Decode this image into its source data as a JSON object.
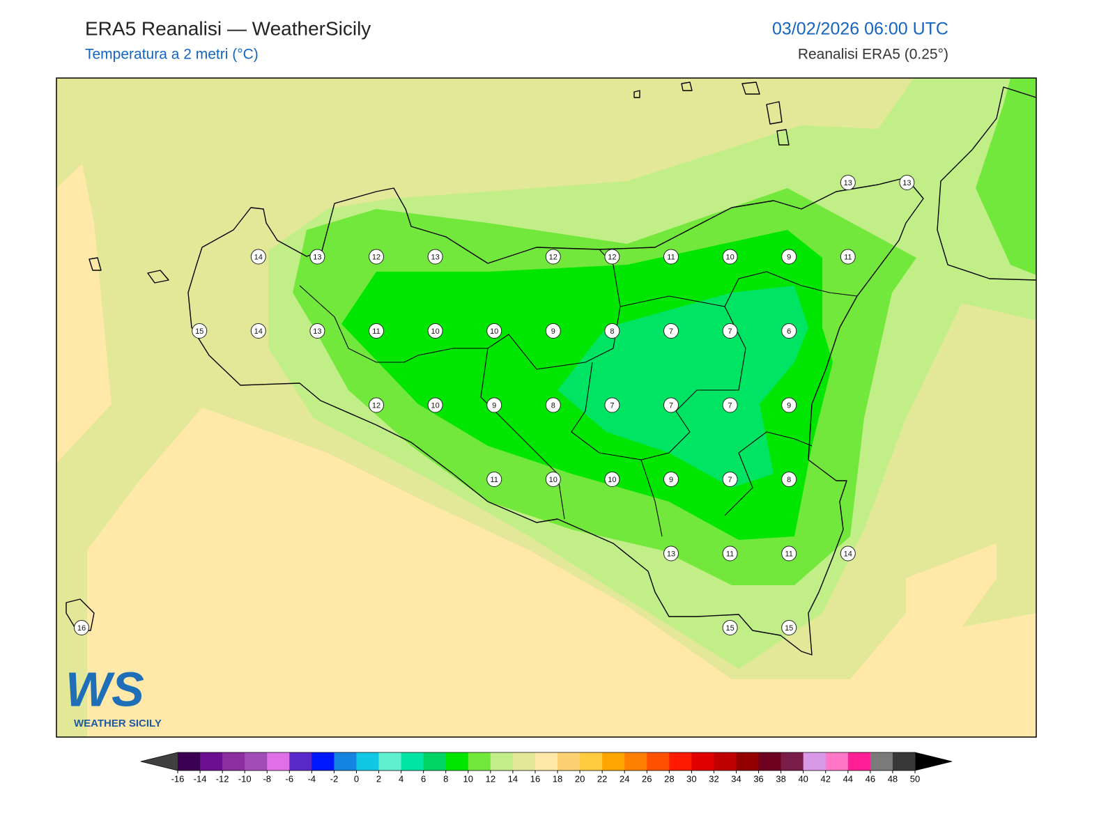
{
  "header": {
    "title": "ERA5 Reanalisi — WeatherSicily",
    "subtitle": "Temperatura a 2 metri (°C)",
    "datetime": "03/02/2026 06:00 UTC",
    "source": "Reanalisi ERA5 (0.25°)"
  },
  "stations": {
    "rows": [
      [
        null,
        null,
        null,
        null,
        null,
        null,
        null,
        null,
        null,
        null,
        null,
        null,
        null,
        13,
        13
      ],
      [
        null,
        null,
        null,
        14,
        13,
        12,
        13,
        null,
        12,
        12,
        11,
        10,
        9,
        11,
        null
      ],
      [
        null,
        null,
        15,
        14,
        13,
        11,
        10,
        10,
        9,
        8,
        7,
        7,
        6,
        null,
        null
      ],
      [
        null,
        null,
        null,
        null,
        null,
        12,
        10,
        9,
        8,
        7,
        7,
        7,
        9,
        null,
        null
      ],
      [
        null,
        null,
        null,
        null,
        null,
        null,
        null,
        11,
        10,
        10,
        9,
        7,
        8,
        null,
        null
      ],
      [
        null,
        null,
        null,
        null,
        null,
        null,
        null,
        null,
        null,
        null,
        13,
        11,
        11,
        14,
        null
      ],
      [
        16,
        null,
        null,
        null,
        null,
        null,
        null,
        null,
        null,
        null,
        null,
        15,
        15,
        null,
        null
      ]
    ]
  },
  "colorbar": {
    "ticks": [
      -16,
      -14,
      -12,
      -10,
      -8,
      -6,
      -4,
      -2,
      0,
      2,
      4,
      6,
      8,
      10,
      12,
      14,
      16,
      18,
      20,
      22,
      24,
      26,
      28,
      30,
      32,
      34,
      36,
      38,
      40,
      42,
      44,
      46,
      48,
      50
    ],
    "colors": [
      "#3c0052",
      "#6a1090",
      "#8a2ea0",
      "#a24cb8",
      "#e070e8",
      "#5a28c8",
      "#0018ff",
      "#1584e0",
      "#10c8e4",
      "#60f0d0",
      "#00e4a4",
      "#00d464",
      "#00e600",
      "#72e83c",
      "#c2ee88",
      "#e2e898",
      "#ffe8a8",
      "#fdd072",
      "#ffcc40",
      "#ffa500",
      "#ff8000",
      "#ff5000",
      "#ff1a00",
      "#e00000",
      "#c00000",
      "#920000",
      "#6e0020",
      "#7a1c48",
      "#d89ae8",
      "#ff78c8",
      "#ff1e96",
      "#7a7a7a",
      "#383838"
    ],
    "under_color": "#404040",
    "over_color": "#000000"
  },
  "logo": {
    "mark": "WS",
    "text": "WEATHER SICILY"
  }
}
